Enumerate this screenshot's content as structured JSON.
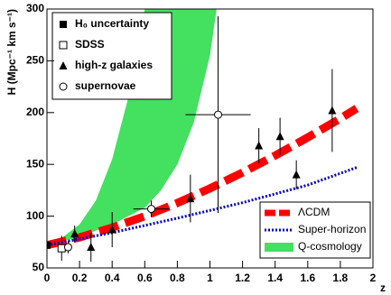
{
  "chart_data": {
    "type": "scatter",
    "ylabel": "H (Mpc⁻¹ km s⁻¹)",
    "xlabel": "z",
    "xlim": [
      0,
      2
    ],
    "xticks": [
      0,
      0.2,
      0.4,
      0.6,
      0.8,
      1,
      1.2,
      1.4,
      1.6,
      1.8,
      2
    ],
    "ylim": [
      50,
      300
    ],
    "yticks": [
      50,
      100,
      150,
      200,
      250,
      300
    ],
    "series": [
      {
        "name": "H₀ uncertainty",
        "marker": "square",
        "color": "#000000",
        "x": [
          0
        ],
        "values": [
          72
        ],
        "errors": [
          3
        ]
      },
      {
        "name": "SDSS",
        "marker": "open-square",
        "color": "#000000",
        "x": [
          0.09
        ],
        "values": [
          69
        ],
        "errors": [
          12
        ]
      },
      {
        "name": "high-z galaxies",
        "marker": "triangle",
        "color": "#000000",
        "x": [
          0.17,
          0.27,
          0.4,
          0.88,
          1.3,
          1.43,
          1.53,
          1.75
        ],
        "values": [
          83,
          70,
          87,
          117,
          168,
          177,
          140,
          202
        ],
        "errors": [
          8,
          14,
          17,
          23,
          17,
          18,
          14,
          40
        ]
      },
      {
        "name": "supernovae",
        "marker": "open-circle",
        "color": "#000000",
        "x": [
          0.13,
          0.64,
          1.05
        ],
        "values": [
          70,
          107,
          198
        ],
        "errors": [
          6,
          8,
          95
        ],
        "x_errors": [
          0,
          0.11,
          0.2
        ]
      }
    ],
    "curves": [
      {
        "name": "ΛCDM",
        "style": "dashed",
        "color": "#ff0000",
        "x": [
          0,
          0.2,
          0.4,
          0.6,
          0.8,
          1,
          1.2,
          1.4,
          1.6,
          1.8,
          1.9
        ],
        "values": [
          72,
          79.5,
          88.9,
          100,
          112.7,
          126.8,
          142.1,
          158.5,
          176,
          194.3,
          204
        ]
      },
      {
        "name": "Super-horizon",
        "style": "dotted",
        "color": "#0000cc",
        "x": [
          0,
          0.4,
          0.8,
          1.2,
          1.6,
          1.9
        ],
        "values": [
          72,
          84,
          98,
          113,
          130,
          147
        ]
      },
      {
        "name": "Q-cosmology",
        "style": "band",
        "color": "#44e060",
        "x": [
          0,
          0.2,
          0.4,
          0.6,
          0.7,
          0.8,
          0.9,
          1,
          1.05
        ],
        "values": [
          72,
          80,
          92,
          108,
          125,
          150,
          190,
          255,
          310
        ],
        "upper_x": [
          0,
          0.1,
          0.2,
          0.3,
          0.4,
          0.5,
          0.6,
          0.65
        ],
        "upper_values": [
          72,
          80,
          92,
          115,
          155,
          215,
          300,
          350
        ]
      }
    ]
  }
}
